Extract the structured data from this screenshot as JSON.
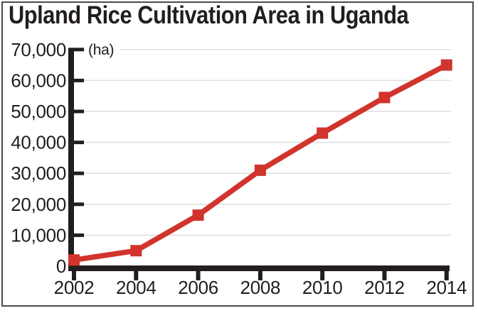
{
  "chart_data": {
    "type": "line",
    "title": "Upland Rice Cultivation Area in Uganda",
    "unit_label": "(ha)",
    "series_name": "Upland rice cultivation area",
    "x": [
      2002,
      2004,
      2006,
      2008,
      2010,
      2012,
      2014
    ],
    "values": [
      2000,
      5000,
      16500,
      31000,
      43000,
      54500,
      65000
    ],
    "xlabel": "",
    "ylabel": "(ha)",
    "ylim": [
      0,
      70000
    ],
    "ytick_interval": 10000,
    "ytick_labels": [
      "0",
      "10,000",
      "20,000",
      "30,000",
      "40,000",
      "50,000",
      "60,000",
      "70,000"
    ],
    "xtick_labels": [
      "2002",
      "2004",
      "2006",
      "2008",
      "2010",
      "2012",
      "2014"
    ],
    "grid": "horizontal",
    "legend": "none",
    "line_color": "#d0342c",
    "marker": "square",
    "marker_color": "#d0342c",
    "axis_color": "#221e1f",
    "grid_color": "#dedede",
    "text_color": "#221e1f",
    "frame_border_color": "#4b4b4d",
    "background_color": "#ffffff"
  }
}
